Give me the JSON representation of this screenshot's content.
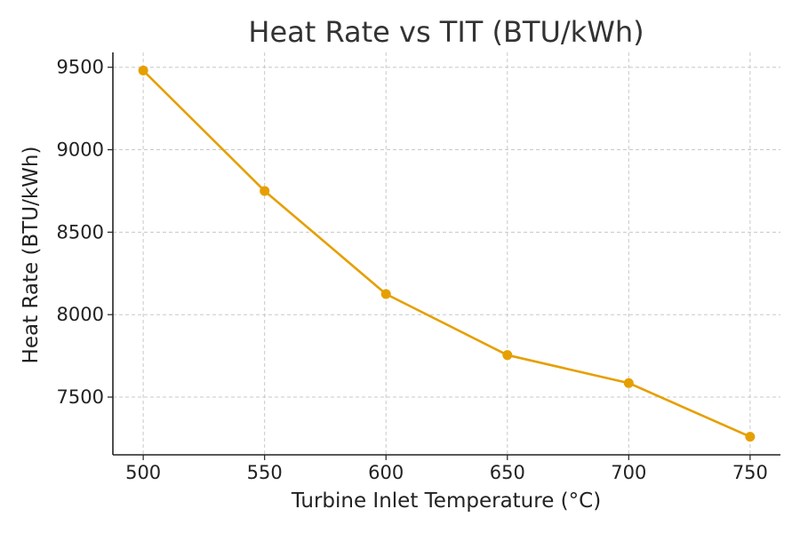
{
  "chart_data": {
    "type": "line",
    "title": "Heat Rate vs TIT (BTU/kWh)",
    "xlabel": "Turbine Inlet Temperature (°C)",
    "ylabel": "Heat Rate (BTU/kWh)",
    "x": [
      500,
      550,
      600,
      650,
      700,
      750
    ],
    "series": [
      {
        "values": [
          9480,
          8750,
          8125,
          7755,
          7585,
          7260
        ],
        "color": "#e69f00"
      }
    ],
    "xlim": [
      487.5,
      762.5
    ],
    "ylim": [
      7150,
      9590
    ],
    "xticks": [
      500,
      550,
      600,
      650,
      700,
      750
    ],
    "yticks": [
      7500,
      8000,
      8500,
      9000,
      9500
    ],
    "grid": true,
    "grid_style": "dashed",
    "marker": "circle"
  }
}
